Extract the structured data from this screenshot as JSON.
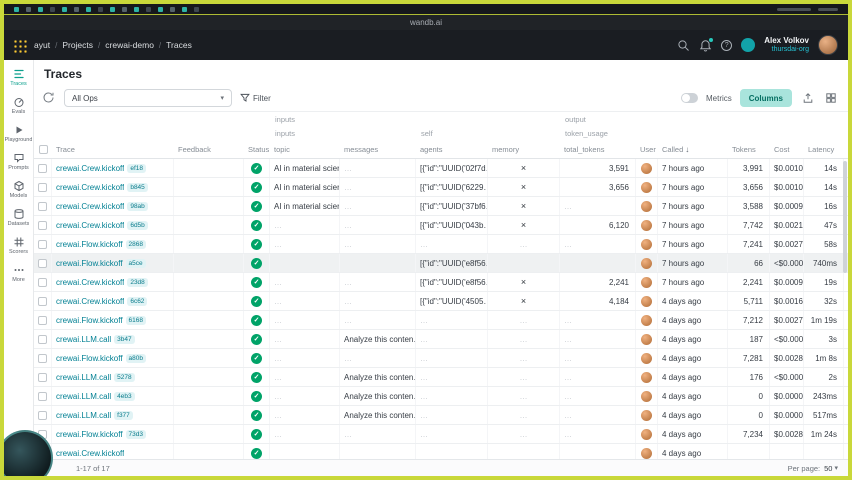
{
  "frame": {
    "site": "wandb.ai"
  },
  "nav": {
    "separator": "/",
    "breadcrumb": {
      "team": "ayut",
      "section": "Projects",
      "project": "crewai-demo",
      "page": "Traces"
    },
    "user": {
      "name": "Alex Volkov",
      "org": "thursdai-org"
    }
  },
  "sidebar": {
    "items": [
      {
        "label": "Traces",
        "icon": "traces-icon",
        "active": true
      },
      {
        "label": "Evals",
        "icon": "evals-icon",
        "active": false
      },
      {
        "label": "Playground",
        "icon": "playground-icon",
        "active": false
      },
      {
        "label": "Prompts",
        "icon": "prompts-icon",
        "active": false
      },
      {
        "label": "Models",
        "icon": "models-icon",
        "active": false
      },
      {
        "label": "Datasets",
        "icon": "datasets-icon",
        "active": false
      },
      {
        "label": "Scorers",
        "icon": "scorers-icon",
        "active": false
      },
      {
        "label": "More",
        "icon": "more-icon",
        "active": false
      }
    ]
  },
  "page": {
    "title": "Traces"
  },
  "toolbar": {
    "ops_selected": "All Ops",
    "filter_label": "Filter",
    "metrics_label": "Metrics",
    "columns_label": "Columns"
  },
  "table": {
    "groups_row1": [
      {
        "label": "inputs"
      },
      {
        "label": "output"
      }
    ],
    "groups_row2": [
      {
        "label": "inputs"
      },
      {
        "label": "self"
      },
      {
        "label": "token_usage"
      }
    ],
    "headers": {
      "trace": "Trace",
      "feedback": "Feedback",
      "status": "Status",
      "topic": "topic",
      "messages": "messages",
      "agents": "agents",
      "memory": "memory",
      "total_tokens": "total_tokens",
      "user": "User",
      "called": "Called",
      "tokens": "Tokens",
      "cost": "Cost",
      "latency": "Latency"
    },
    "sort": {
      "column": "Called",
      "direction": "desc"
    },
    "rows": [
      {
        "name": "crewai.Crew.kickoff",
        "id": "ef18",
        "topic": "AI in material science",
        "messages": "…",
        "agents": "[{\"id\":\"UUID('02f7d…",
        "memory": "×",
        "total_tokens": "3,591",
        "called": "7 hours ago",
        "tokens": "3,991",
        "cost": "$0.0010",
        "latency": "14s",
        "highlighted": false
      },
      {
        "name": "crewai.Crew.kickoff",
        "id": "b845",
        "topic": "AI in material science",
        "messages": "…",
        "agents": "[{\"id\":\"UUID('6229…",
        "memory": "×",
        "total_tokens": "3,656",
        "called": "7 hours ago",
        "tokens": "3,656",
        "cost": "$0.0010",
        "latency": "14s",
        "highlighted": false
      },
      {
        "name": "crewai.Crew.kickoff",
        "id": "98ab",
        "topic": "AI in material science",
        "messages": "…",
        "agents": "[{\"id\":\"UUID('37bf6…",
        "memory": "×",
        "total_tokens": "…",
        "called": "7 hours ago",
        "tokens": "3,588",
        "cost": "$0.0009",
        "latency": "16s",
        "highlighted": false
      },
      {
        "name": "crewai.Crew.kickoff",
        "id": "6d5b",
        "topic": "…",
        "messages": "…",
        "agents": "[{\"id\":\"UUID('043b…",
        "memory": "×",
        "total_tokens": "6,120",
        "called": "7 hours ago",
        "tokens": "7,742",
        "cost": "$0.0021",
        "latency": "47s",
        "highlighted": false
      },
      {
        "name": "crewai.Flow.kickoff",
        "id": "2868",
        "topic": "…",
        "messages": "…",
        "agents": "…",
        "memory": "…",
        "total_tokens": "…",
        "called": "7 hours ago",
        "tokens": "7,241",
        "cost": "$0.0027",
        "latency": "58s",
        "highlighted": false
      },
      {
        "name": "crewai.Flow.kickoff",
        "id": "a5ce",
        "topic": "",
        "messages": "",
        "agents": "[{\"id\":\"UUID('e8f56…",
        "memory": "",
        "total_tokens": "",
        "called": "7 hours ago",
        "tokens": "66",
        "cost": "<$0.0001",
        "latency": "740ms",
        "highlighted": true
      },
      {
        "name": "crewai.Crew.kickoff",
        "id": "23d8",
        "topic": "…",
        "messages": "…",
        "agents": "[{\"id\":\"UUID('e8f56…",
        "memory": "×",
        "total_tokens": "2,241",
        "called": "7 hours ago",
        "tokens": "2,241",
        "cost": "$0.0009",
        "latency": "19s",
        "highlighted": false
      },
      {
        "name": "crewai.Crew.kickoff",
        "id": "6c62",
        "topic": "…",
        "messages": "…",
        "agents": "[{\"id\":\"UUID('4505…",
        "memory": "×",
        "total_tokens": "4,184",
        "called": "4 days ago",
        "tokens": "5,711",
        "cost": "$0.0016",
        "latency": "32s",
        "highlighted": false
      },
      {
        "name": "crewai.Flow.kickoff",
        "id": "6168",
        "topic": "…",
        "messages": "…",
        "agents": "…",
        "memory": "…",
        "total_tokens": "…",
        "called": "4 days ago",
        "tokens": "7,212",
        "cost": "$0.0027",
        "latency": "1m 19s",
        "highlighted": false
      },
      {
        "name": "crewai.LLM.call",
        "id": "3b47",
        "topic": "…",
        "messages": "Analyze this conten…",
        "agents": "…",
        "memory": "…",
        "total_tokens": "…",
        "called": "4 days ago",
        "tokens": "187",
        "cost": "<$0.0001",
        "latency": "3s",
        "highlighted": false
      },
      {
        "name": "crewai.Flow.kickoff",
        "id": "a80b",
        "topic": "…",
        "messages": "…",
        "agents": "…",
        "memory": "…",
        "total_tokens": "…",
        "called": "4 days ago",
        "tokens": "7,281",
        "cost": "$0.0028",
        "latency": "1m 8s",
        "highlighted": false
      },
      {
        "name": "crewai.LLM.call",
        "id": "5278",
        "topic": "…",
        "messages": "Analyze this conten…",
        "agents": "…",
        "memory": "…",
        "total_tokens": "…",
        "called": "4 days ago",
        "tokens": "176",
        "cost": "<$0.0001",
        "latency": "2s",
        "highlighted": false
      },
      {
        "name": "crewai.LLM.call",
        "id": "4eb3",
        "topic": "…",
        "messages": "Analyze this conten…",
        "agents": "…",
        "memory": "…",
        "total_tokens": "…",
        "called": "4 days ago",
        "tokens": "0",
        "cost": "$0.0000",
        "latency": "243ms",
        "highlighted": false
      },
      {
        "name": "crewai.LLM.call",
        "id": "f377",
        "topic": "…",
        "messages": "Analyze this conten…",
        "agents": "…",
        "memory": "…",
        "total_tokens": "…",
        "called": "4 days ago",
        "tokens": "0",
        "cost": "$0.0000",
        "latency": "517ms",
        "highlighted": false
      },
      {
        "name": "crewai.Flow.kickoff",
        "id": "73d3",
        "topic": "…",
        "messages": "…",
        "agents": "…",
        "memory": "…",
        "total_tokens": "…",
        "called": "4 days ago",
        "tokens": "7,234",
        "cost": "$0.0028",
        "latency": "1m 24s",
        "highlighted": false
      },
      {
        "name": "crewai.Crew.kickoff",
        "id": "",
        "topic": "",
        "messages": "",
        "agents": "",
        "memory": "",
        "total_tokens": "",
        "called": "4 days ago",
        "tokens": "",
        "cost": "",
        "latency": "",
        "highlighted": false
      }
    ]
  },
  "footer": {
    "range": "1-17 of 17",
    "per_page_label": "Per page:",
    "per_page_value": "50"
  },
  "icons": {
    "status_success": "✓",
    "memory_absent": "×",
    "sort_desc": "↓",
    "dropdown_chevron": "▾",
    "empty_placeholder": "…",
    "help": "?"
  },
  "colors": {
    "frame_border": "#C9D83A",
    "accent_teal": "#13A9BA",
    "link_teal": "#038194",
    "success_green": "#00A368",
    "columns_button_bg": "#A9E4DC",
    "selected_row": "#EFF1F2",
    "badge_bg": "#E1F3F5",
    "user_org_teal": "#25C3D4",
    "logo_yellow": "#FFCC33"
  }
}
